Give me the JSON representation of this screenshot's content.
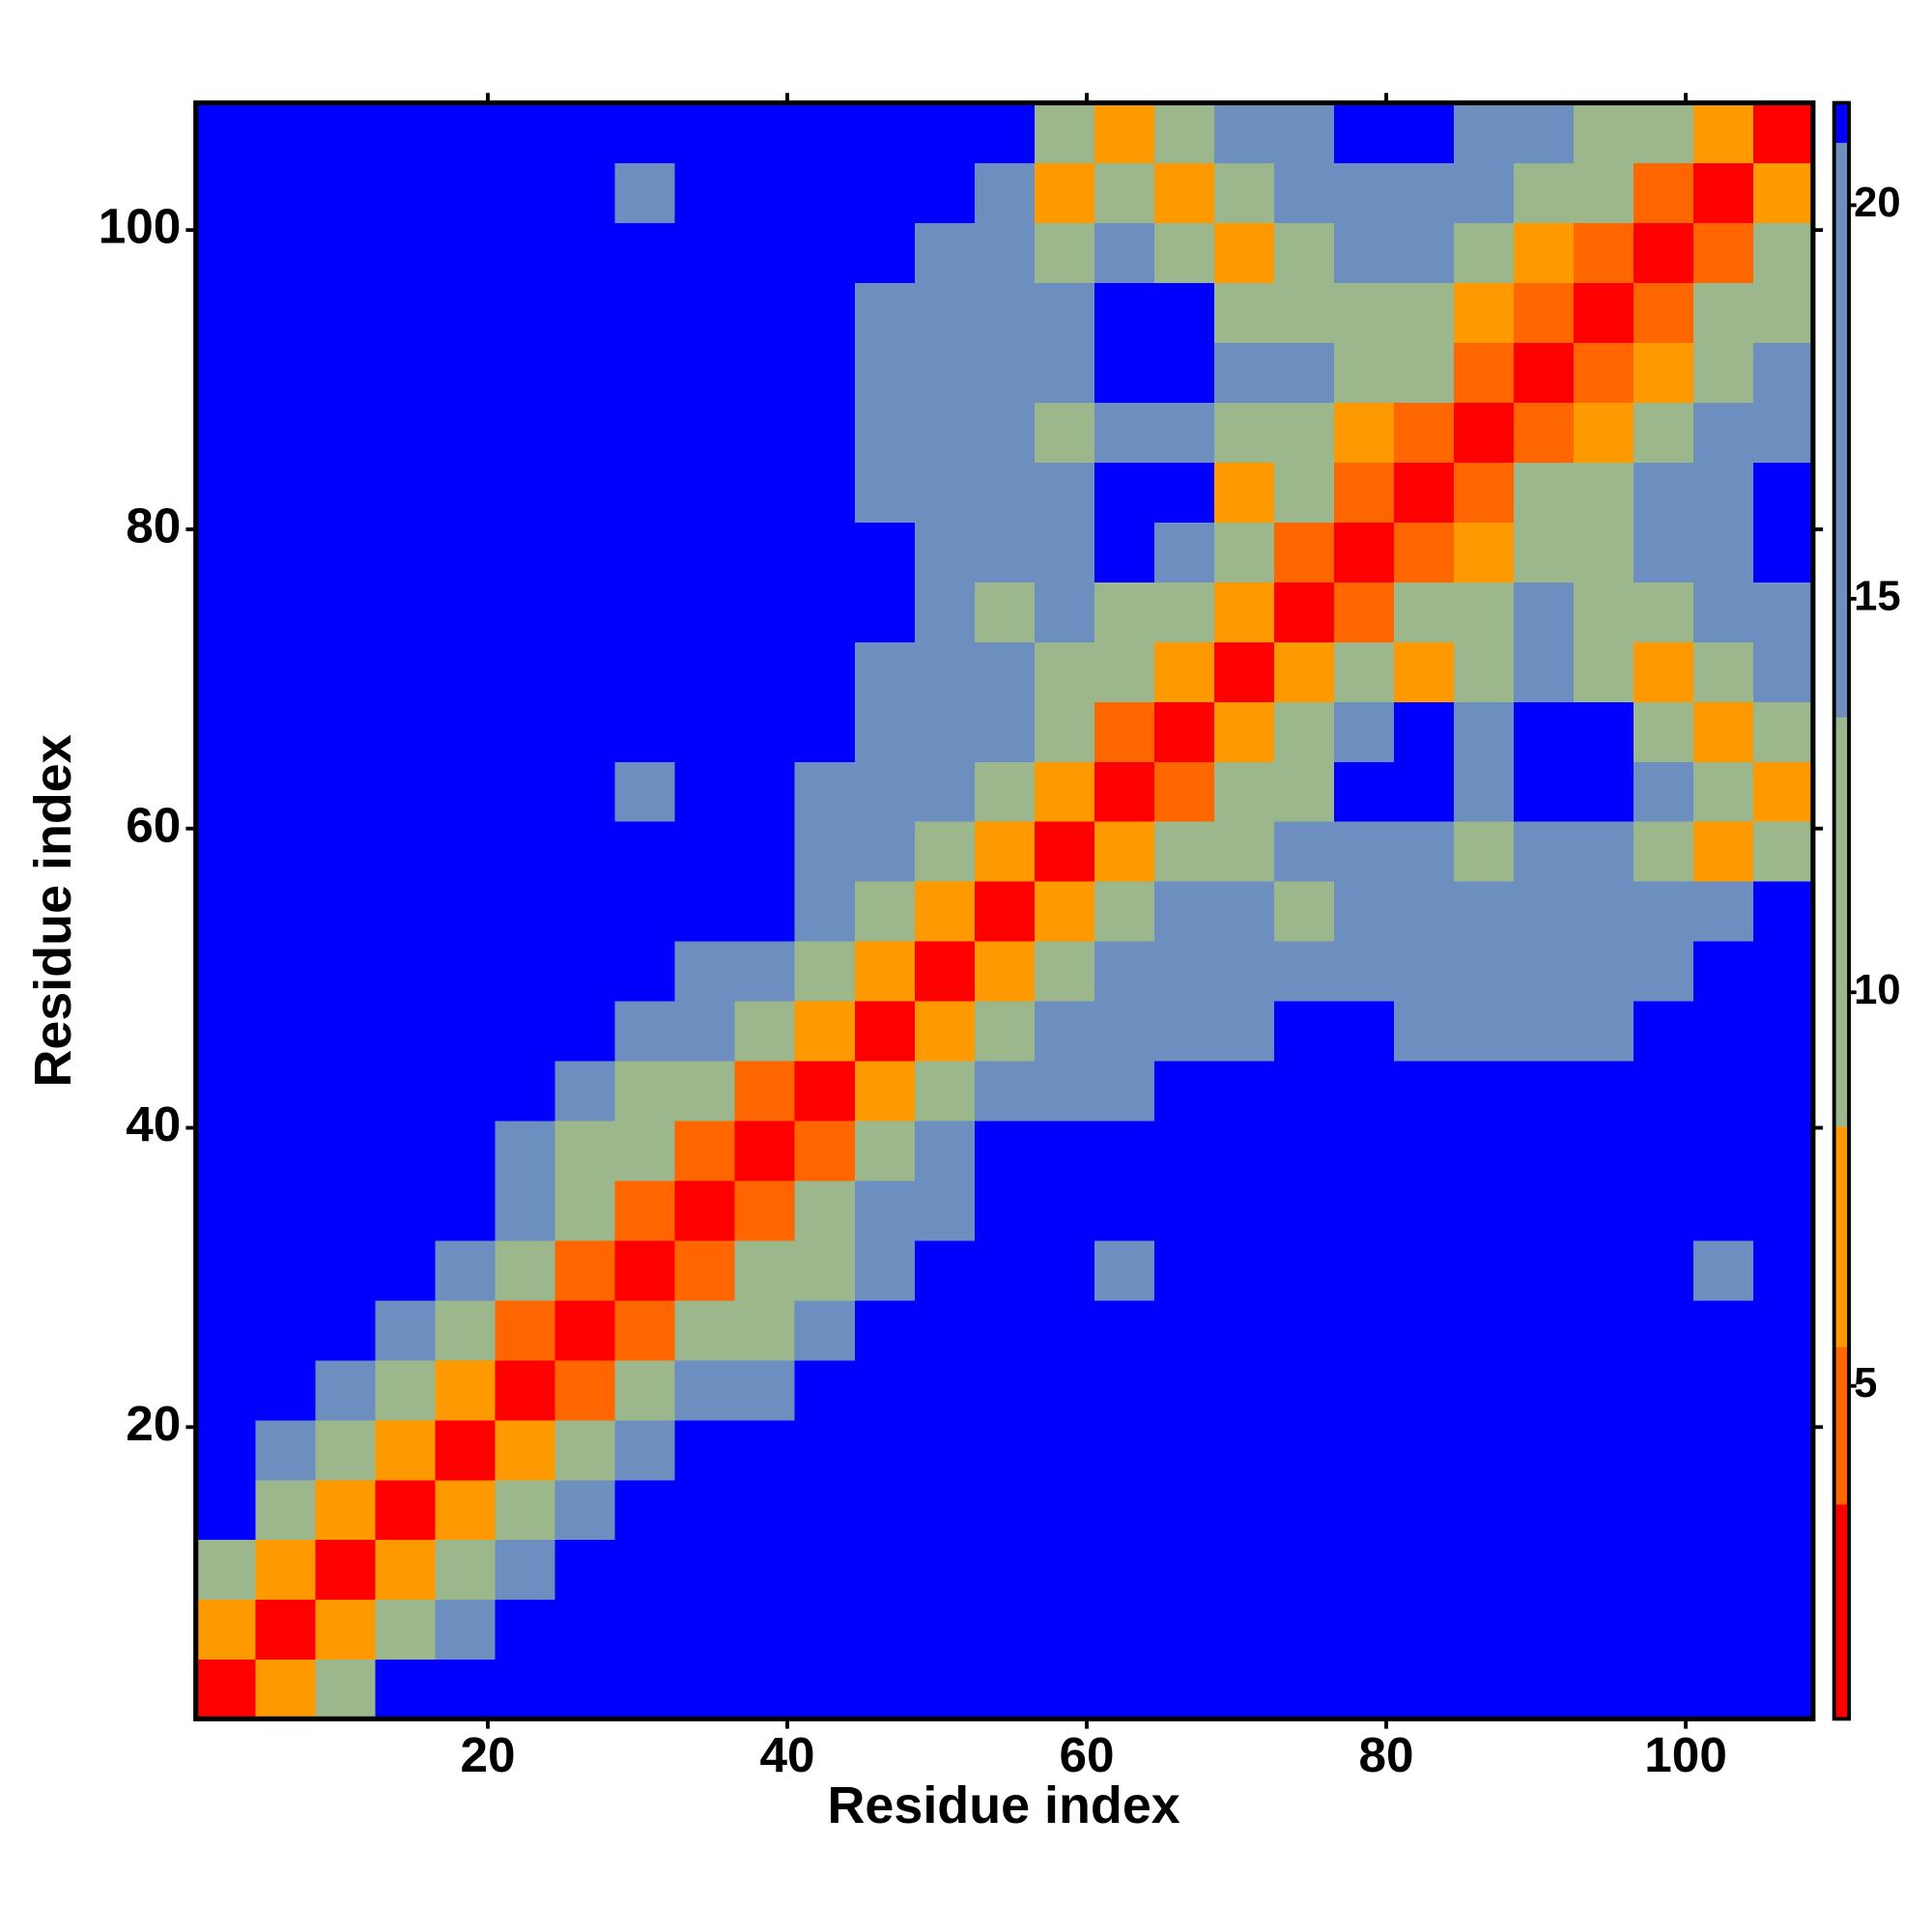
{
  "chart_data": {
    "type": "heatmap",
    "xlabel": "Residue index",
    "ylabel": "Residue index",
    "x": [
      2.5,
      6.5,
      10.5,
      14.5,
      18.5,
      22.5,
      26.5,
      30.5,
      34.5,
      38.5,
      42.5,
      46.5,
      50.5,
      54.5,
      58.5,
      62.5,
      66.5,
      70.5,
      74.5,
      78.5,
      82.5,
      86.5,
      90.5,
      94.5,
      98.5,
      102.5,
      106.5
    ],
    "y": [
      2.5,
      6.5,
      10.5,
      14.5,
      18.5,
      22.5,
      26.5,
      30.5,
      34.5,
      38.5,
      42.5,
      46.5,
      50.5,
      54.5,
      58.5,
      62.5,
      66.5,
      70.5,
      74.5,
      78.5,
      82.5,
      86.5,
      90.5,
      94.5,
      98.5,
      102.5,
      106.5
    ],
    "z": [
      [
        1,
        6,
        12,
        21,
        21,
        21,
        21,
        21,
        21,
        21,
        21,
        21,
        21,
        21,
        21,
        21,
        21,
        21,
        21,
        21,
        21,
        21,
        21,
        21,
        21,
        21,
        21
      ],
      [
        6,
        1,
        6,
        12,
        17,
        21,
        21,
        21,
        21,
        21,
        21,
        21,
        21,
        21,
        21,
        21,
        21,
        21,
        21,
        21,
        21,
        21,
        21,
        21,
        21,
        21,
        21
      ],
      [
        12,
        6,
        1,
        6,
        12,
        17,
        21,
        21,
        21,
        21,
        21,
        21,
        21,
        21,
        21,
        21,
        21,
        21,
        21,
        21,
        21,
        21,
        21,
        21,
        21,
        21,
        21
      ],
      [
        21,
        12,
        6,
        1,
        6,
        12,
        17,
        21,
        21,
        21,
        21,
        21,
        21,
        21,
        21,
        21,
        21,
        21,
        21,
        21,
        21,
        21,
        21,
        21,
        21,
        21,
        21
      ],
      [
        21,
        17,
        12,
        6,
        1,
        6,
        11,
        17,
        21,
        21,
        21,
        21,
        21,
        21,
        21,
        21,
        21,
        21,
        21,
        21,
        21,
        21,
        21,
        21,
        21,
        21,
        21
      ],
      [
        21,
        21,
        17,
        12,
        6,
        1,
        5,
        10,
        14,
        19,
        21,
        21,
        21,
        21,
        21,
        21,
        21,
        21,
        21,
        21,
        21,
        21,
        21,
        21,
        21,
        21,
        21
      ],
      [
        21,
        21,
        21,
        17,
        11,
        5,
        1,
        5,
        10,
        13,
        18,
        21,
        21,
        21,
        21,
        21,
        21,
        21,
        21,
        21,
        21,
        21,
        21,
        21,
        21,
        21,
        21
      ],
      [
        21,
        21,
        21,
        21,
        17,
        10,
        5,
        1,
        5,
        9,
        13,
        19,
        21,
        21,
        21,
        18,
        21,
        21,
        21,
        21,
        21,
        21,
        21,
        21,
        21,
        18,
        21
      ],
      [
        21,
        21,
        21,
        21,
        21,
        14,
        10,
        5,
        1,
        5,
        10,
        14,
        19,
        21,
        21,
        21,
        21,
        21,
        21,
        21,
        21,
        21,
        21,
        21,
        21,
        21,
        21
      ],
      [
        21,
        21,
        21,
        21,
        21,
        19,
        13,
        9,
        5,
        1,
        5,
        11,
        16,
        21,
        21,
        21,
        21,
        21,
        21,
        21,
        21,
        21,
        21,
        21,
        21,
        21,
        21
      ],
      [
        21,
        21,
        21,
        21,
        21,
        21,
        18,
        13,
        10,
        5,
        1,
        6,
        12,
        17,
        19,
        19,
        21,
        21,
        21,
        21,
        21,
        21,
        21,
        21,
        21,
        21,
        21
      ],
      [
        21,
        21,
        21,
        21,
        21,
        21,
        21,
        19,
        14,
        11,
        6,
        1,
        6,
        12,
        16,
        17,
        18,
        19,
        21,
        21,
        18,
        17,
        18,
        19,
        21,
        21,
        21
      ],
      [
        21,
        21,
        21,
        21,
        21,
        21,
        21,
        21,
        19,
        16,
        12,
        6,
        1,
        6,
        11,
        15,
        17,
        18,
        17,
        18,
        17,
        18,
        17,
        18,
        19,
        21,
        21
      ],
      [
        21,
        21,
        21,
        21,
        21,
        21,
        21,
        21,
        21,
        21,
        17,
        12,
        6,
        1,
        6,
        11,
        14,
        16,
        13,
        17,
        16,
        17,
        16,
        15,
        16,
        18,
        21
      ],
      [
        21,
        21,
        21,
        21,
        21,
        21,
        21,
        21,
        21,
        21,
        19,
        16,
        11,
        6,
        1,
        6,
        11,
        13,
        15,
        14,
        15,
        13,
        14,
        14,
        12,
        6,
        12
      ],
      [
        21,
        21,
        21,
        21,
        21,
        21,
        21,
        18,
        21,
        21,
        19,
        17,
        15,
        11,
        6,
        1,
        5,
        11,
        13,
        21,
        21,
        15,
        21,
        21,
        14,
        11,
        6
      ],
      [
        21,
        21,
        21,
        21,
        21,
        21,
        21,
        21,
        21,
        21,
        21,
        18,
        17,
        14,
        11,
        5,
        1,
        6,
        11,
        14,
        21,
        17,
        21,
        21,
        13,
        7,
        12
      ],
      [
        21,
        21,
        21,
        21,
        21,
        21,
        21,
        21,
        21,
        21,
        21,
        19,
        18,
        16,
        13,
        11,
        6,
        1,
        6,
        10,
        7,
        13,
        14,
        12,
        7,
        11,
        17
      ],
      [
        21,
        21,
        21,
        21,
        21,
        21,
        21,
        21,
        21,
        21,
        21,
        21,
        17,
        13,
        15,
        13,
        11,
        6,
        1,
        5,
        9,
        12,
        14,
        12,
        10,
        15,
        19
      ],
      [
        21,
        21,
        21,
        21,
        21,
        21,
        21,
        21,
        21,
        21,
        21,
        21,
        18,
        17,
        14,
        21,
        14,
        10,
        5,
        1,
        5,
        7,
        12,
        13,
        15,
        17,
        21
      ],
      [
        21,
        21,
        21,
        21,
        21,
        21,
        21,
        21,
        21,
        21,
        21,
        18,
        17,
        16,
        15,
        21,
        21,
        7,
        9,
        5,
        1,
        5,
        9,
        13,
        17,
        18,
        21
      ],
      [
        21,
        21,
        21,
        21,
        21,
        21,
        21,
        21,
        21,
        21,
        21,
        17,
        18,
        17,
        13,
        15,
        17,
        13,
        12,
        7,
        5,
        1,
        4,
        7,
        11,
        14,
        18
      ],
      [
        21,
        21,
        21,
        21,
        21,
        21,
        21,
        21,
        21,
        21,
        21,
        18,
        17,
        16,
        14,
        21,
        21,
        14,
        14,
        12,
        9,
        4,
        1,
        4,
        7,
        12,
        16
      ],
      [
        21,
        21,
        21,
        21,
        21,
        21,
        21,
        21,
        21,
        21,
        21,
        19,
        18,
        15,
        14,
        21,
        21,
        12,
        12,
        13,
        13,
        7,
        4,
        1,
        5,
        9,
        13
      ],
      [
        21,
        21,
        21,
        21,
        21,
        21,
        21,
        21,
        21,
        21,
        21,
        21,
        19,
        16,
        12,
        14,
        13,
        7,
        10,
        15,
        17,
        11,
        7,
        5,
        1,
        5,
        10
      ],
      [
        21,
        21,
        21,
        21,
        21,
        21,
        21,
        18,
        21,
        21,
        21,
        21,
        21,
        18,
        6,
        11,
        7,
        11,
        15,
        17,
        18,
        14,
        12,
        9,
        5,
        1,
        6
      ],
      [
        21,
        21,
        21,
        21,
        21,
        21,
        21,
        21,
        21,
        21,
        21,
        21,
        21,
        21,
        12,
        6,
        12,
        17,
        19,
        21,
        21,
        18,
        16,
        13,
        10,
        6,
        1
      ]
    ],
    "xlim": [
      0.5,
      108.5
    ],
    "ylim": [
      0.5,
      108.5
    ],
    "xticks": [
      20,
      40,
      60,
      80,
      100
    ],
    "yticks": [
      20,
      40,
      60,
      80,
      100
    ],
    "zlim": [
      0.77,
      21.3
    ],
    "zticks": [
      5,
      10,
      15,
      20
    ],
    "colorscale": [
      {
        "value": 3.5,
        "color": "#ff0000"
      },
      {
        "value": 5.5,
        "color": "#ff6600"
      },
      {
        "value": 8.3,
        "color": "#ff9900"
      },
      {
        "value": 13.5,
        "color": "#9db78c"
      },
      {
        "value": 20.8,
        "color": "#6d8fbf"
      },
      {
        "value": 21.3,
        "color": "#0000ff"
      }
    ]
  }
}
